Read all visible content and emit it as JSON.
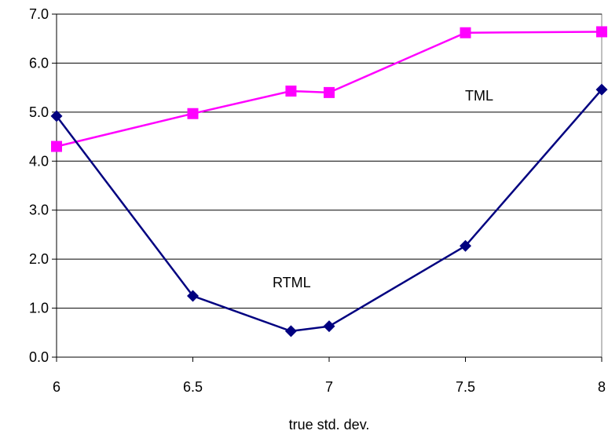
{
  "chart_data": {
    "type": "line",
    "title": "",
    "xlabel": "true std. dev.",
    "ylabel": "",
    "xlim": [
      6,
      8
    ],
    "ylim": [
      0,
      7
    ],
    "x_ticks": [
      "6",
      "6.5",
      "7",
      "7.5",
      "8"
    ],
    "y_ticks": [
      "0.0",
      "1.0",
      "2.0",
      "3.0",
      "4.0",
      "5.0",
      "6.0",
      "7.0"
    ],
    "grid": "horizontal",
    "series": [
      {
        "name": "TML",
        "color": "#ff00ff",
        "marker": "square",
        "x": [
          6,
          6.5,
          6.86,
          7,
          7.5,
          8
        ],
        "y": [
          4.3,
          4.97,
          5.43,
          5.4,
          6.62,
          6.64
        ]
      },
      {
        "name": "RTML",
        "color": "#000080",
        "marker": "diamond",
        "x": [
          6,
          6.5,
          6.86,
          7,
          7.5,
          8
        ],
        "y": [
          4.92,
          1.25,
          0.53,
          0.63,
          2.27,
          5.46
        ]
      }
    ]
  }
}
